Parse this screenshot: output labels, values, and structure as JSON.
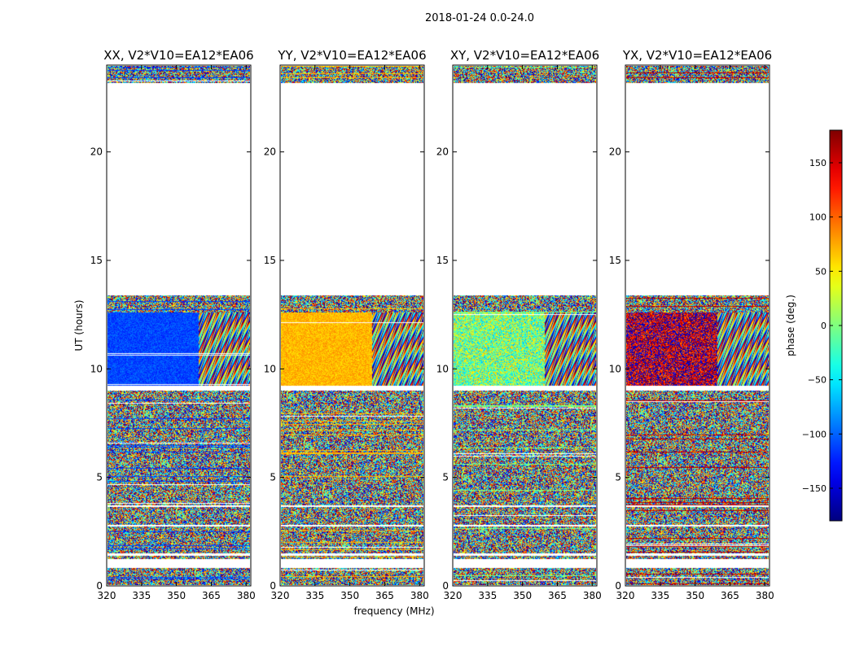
{
  "figure_title": "2018-01-24 0.0-24.0",
  "colors": {
    "colormap": "jet",
    "gap": "#ffffff",
    "frame": "#000000"
  },
  "chart_data": {
    "type": "heatmap",
    "ylabel": "UT (hours)",
    "xlabel": "frequency (MHz)",
    "xlim": [
      320,
      382
    ],
    "ylim": [
      0,
      24
    ],
    "xticks": [
      320,
      335,
      350,
      365,
      380
    ],
    "yticks": [
      0,
      5,
      10,
      15,
      20
    ],
    "panels": [
      {
        "title": "XX, V2*V10=EA12*EA06",
        "coherent_phase": -110
      },
      {
        "title": "YY, V2*V10=EA12*EA06",
        "coherent_phase": 70
      },
      {
        "title": "XY, V2*V10=EA12*EA06",
        "coherent_phase": 0
      },
      {
        "title": "YX, V2*V10=EA12*EA06",
        "coherent_phase": 160
      }
    ],
    "data_windows_hours": [
      [
        0.0,
        0.8
      ],
      [
        1.2,
        1.35
      ],
      [
        1.45,
        2.7
      ],
      [
        2.8,
        3.6
      ],
      [
        3.7,
        9.0
      ],
      [
        9.2,
        13.4
      ],
      [
        23.2,
        24.0
      ]
    ],
    "coherent_window_hours": [
      9.2,
      12.6
    ],
    "colorbar": {
      "label": "phase (deg.)",
      "range": [
        -180,
        180
      ],
      "ticks": [
        -150,
        -100,
        -50,
        0,
        50,
        100,
        150
      ],
      "tick_labels": [
        "−150",
        "−100",
        "−50",
        "0",
        "50",
        "100",
        "150"
      ]
    }
  }
}
